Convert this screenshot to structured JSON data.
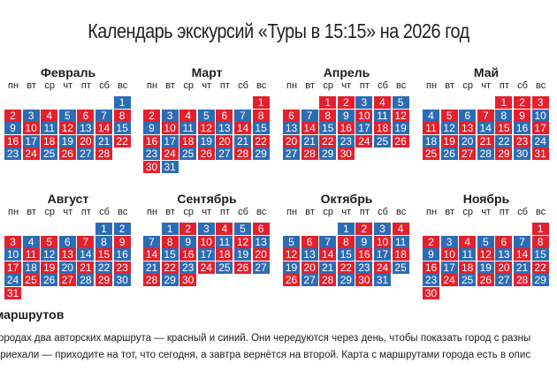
{
  "title": "Календарь экскурсий «Туры в 15:15» на 2026 год",
  "weekdays": [
    "пн",
    "вт",
    "ср",
    "чт",
    "пт",
    "сб",
    "вс"
  ],
  "colors": {
    "r": "#e4202c",
    "b": "#2d6cb4"
  },
  "months": [
    {
      "name": "Февраль",
      "first_weekday": 6,
      "days": [
        1,
        2,
        3,
        4,
        5,
        6,
        7,
        8,
        9,
        10,
        11,
        12,
        13,
        14,
        15,
        16,
        17,
        18,
        19,
        20,
        21,
        22,
        23,
        24,
        25,
        26,
        27,
        28
      ],
      "colors": "brbrbrbrbrbrbrbrbrbrbrbrbrbr"
    },
    {
      "name": "Март",
      "first_weekday": 6,
      "days": [
        1,
        2,
        3,
        4,
        5,
        6,
        7,
        8,
        9,
        10,
        11,
        12,
        13,
        14,
        15,
        16,
        17,
        18,
        19,
        20,
        21,
        22,
        23,
        24,
        25,
        26,
        27,
        28,
        29,
        30,
        31
      ],
      "colors": "rrbrbrbrbrbrbrbrbrbrbrbrbrbrbrb"
    },
    {
      "name": "Апрель",
      "first_weekday": 2,
      "days": [
        1,
        2,
        3,
        4,
        5,
        6,
        7,
        8,
        9,
        10,
        11,
        12,
        13,
        14,
        15,
        16,
        17,
        18,
        19,
        20,
        21,
        22,
        23,
        24,
        25,
        26,
        27,
        28,
        29,
        30
      ],
      "colors": "rrbrbrbrbrbrbrbrbrbrbrbrbrbrbr"
    },
    {
      "name": "Май",
      "first_weekday": 4,
      "days": [
        1,
        2,
        3,
        4,
        5,
        6,
        7,
        8,
        9,
        10,
        11,
        12,
        13,
        14,
        15,
        16,
        17,
        18,
        19,
        20,
        21,
        22,
        23,
        24,
        25,
        26,
        27,
        28,
        29,
        30,
        31
      ],
      "colors": "rrrbrbrbrbrbrbrbrbrbrbrbrbrbrbr"
    },
    {
      "name": "Август",
      "first_weekday": 5,
      "days": [
        1,
        2,
        3,
        4,
        5,
        6,
        7,
        8,
        9,
        10,
        11,
        12,
        13,
        14,
        15,
        16,
        17,
        18,
        19,
        20,
        21,
        22,
        23,
        24,
        25,
        26,
        27,
        28,
        29,
        30,
        31
      ],
      "colors": "bbrbrbrbrbrbrbrbrbrbrbrbrbrbrbr"
    },
    {
      "name": "Сентябрь",
      "first_weekday": 1,
      "days": [
        1,
        2,
        3,
        4,
        5,
        6,
        7,
        8,
        9,
        10,
        11,
        12,
        13,
        14,
        15,
        16,
        17,
        18,
        19,
        20,
        21,
        22,
        23,
        24,
        25,
        26,
        27,
        28,
        29,
        30
      ],
      "colors": "brbrbrbrbrbrbrbrbrbrbrbrbrbrbr"
    },
    {
      "name": "Октябрь",
      "first_weekday": 3,
      "days": [
        1,
        2,
        3,
        4,
        5,
        6,
        7,
        8,
        9,
        10,
        11,
        12,
        13,
        14,
        15,
        16,
        17,
        18,
        19,
        20,
        21,
        22,
        23,
        24,
        25,
        26,
        27,
        28,
        29,
        30,
        31
      ],
      "colors": "brbrbrbrbrbrbrbrbrbrbrbrbrbrbrb"
    },
    {
      "name": "Ноябрь",
      "first_weekday": 6,
      "days": [
        1,
        2,
        3,
        4,
        5,
        6,
        7,
        8,
        9,
        10,
        11,
        12,
        13,
        14,
        15,
        16,
        17,
        18,
        19,
        20,
        21,
        22,
        23,
        24,
        25,
        26,
        27,
        28,
        29,
        30
      ],
      "colors": "rrbrbrbrbrbrbrbrbrbrbrbrbrbrbr"
    }
  ],
  "notes": {
    "heading": "маршрутов",
    "lines": [
      "городах два авторских маршрута — красный и синий. Они чередуются через день, чтобы показать город с разны",
      "приехали — приходите на тот, что сегодня, а завтра вернётся на второй. Карта с маршрутами города есть в опис"
    ]
  }
}
